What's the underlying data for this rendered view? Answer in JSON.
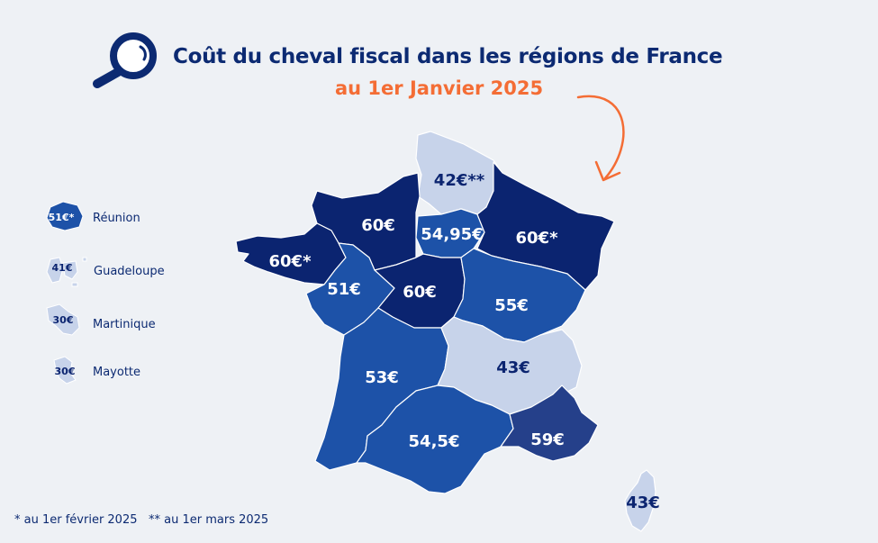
{
  "header": {
    "title": "Coût du cheval fiscal dans les régions de France",
    "subtitle": "au 1er Janvier 2025"
  },
  "colors": {
    "background": "#eef1f5",
    "title": "#0c2a72",
    "subtitle_accent": "#f46d35",
    "tier_light": "#c7d3ea",
    "tier_mid": "#1d52a8",
    "tier_mid_dark": "#25408a",
    "tier_dark": "#0b2470"
  },
  "map": {
    "regions": [
      {
        "name": "Hauts-de-France",
        "value": "42€**",
        "tier": "light"
      },
      {
        "name": "Normandie",
        "value": "60€",
        "tier": "dark"
      },
      {
        "name": "Île-de-France",
        "value": "54,95€",
        "tier": "mid"
      },
      {
        "name": "Grand Est",
        "value": "60€*",
        "tier": "dark"
      },
      {
        "name": "Bretagne",
        "value": "60€*",
        "tier": "dark"
      },
      {
        "name": "Pays de la Loire",
        "value": "51€",
        "tier": "mid"
      },
      {
        "name": "Centre-Val de Loire",
        "value": "60€",
        "tier": "dark"
      },
      {
        "name": "Bourgogne-Franche-Comté",
        "value": "55€",
        "tier": "mid"
      },
      {
        "name": "Nouvelle-Aquitaine",
        "value": "53€",
        "tier": "mid"
      },
      {
        "name": "Auvergne-Rhône-Alpes",
        "value": "43€",
        "tier": "light"
      },
      {
        "name": "Occitanie",
        "value": "54,5€",
        "tier": "mid"
      },
      {
        "name": "Provence-Alpes-Côte d'Azur",
        "value": "59€",
        "tier": "mid_dark"
      },
      {
        "name": "Corse",
        "value": "43€",
        "tier": "light"
      }
    ],
    "overseas": [
      {
        "name": "Réunion",
        "value": "51€*",
        "tier": "mid"
      },
      {
        "name": "Guadeloupe",
        "value": "41€",
        "tier": "light"
      },
      {
        "name": "Martinique",
        "value": "30€",
        "tier": "light"
      },
      {
        "name": "Mayotte",
        "value": "30€",
        "tier": "light"
      }
    ]
  },
  "footnotes": [
    "* au 1er février 2025",
    "** au 1er mars 2025"
  ],
  "icons": {
    "header": "magnifier-icon",
    "arrow": "curved-arrow-icon"
  }
}
